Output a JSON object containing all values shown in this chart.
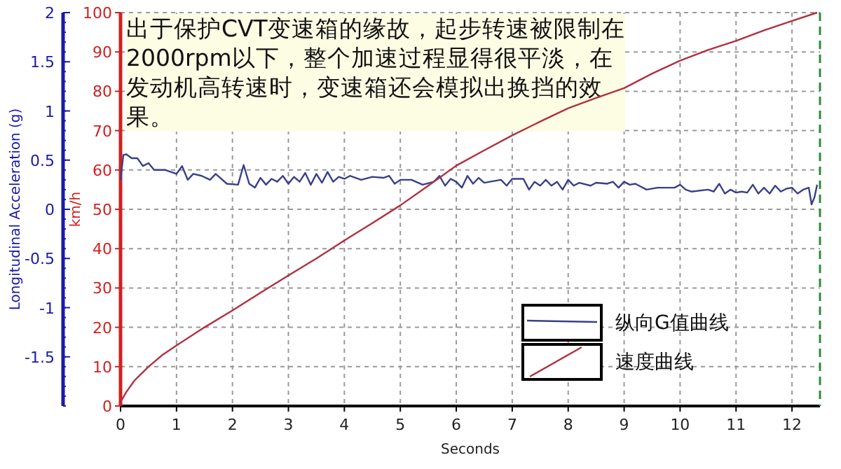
{
  "chart_data": {
    "type": "line",
    "xlabel": "Seconds",
    "ylabel": "Longitudinal Acceleration (g)",
    "y2label": "km/h",
    "annotations": [
      "出于保护CVT变速箱的缘故，起步转速被限制在2000rpm以下，整个加速过程显得很平淡，在发动机高转速时，变速箱还会模拟出换挡的效果。"
    ],
    "xlim": [
      0,
      12.5
    ],
    "xticks": [
      0,
      1,
      2,
      3,
      4,
      5,
      6,
      7,
      8,
      9,
      10,
      11,
      12
    ],
    "ylim": [
      -2,
      2
    ],
    "yticks": [
      -1.5,
      -1,
      -0.5,
      0,
      0.5,
      1,
      1.5,
      2
    ],
    "y2lim": [
      0,
      100
    ],
    "y2ticks": [
      0,
      10,
      20,
      30,
      40,
      50,
      60,
      70,
      80,
      90,
      100
    ],
    "grid": true,
    "legend": "bottom right",
    "ref_lines": [
      {
        "axis": "x",
        "value": 12.5,
        "color": "#2e8b3a",
        "line_style": "dashed"
      }
    ],
    "series": [
      {
        "name": "纵向G值曲线",
        "color": "#3a3f8a",
        "x": [
          0,
          0.05,
          0.1,
          0.2,
          0.3,
          0.4,
          0.5,
          0.6,
          0.8,
          1.0,
          1.1,
          1.2,
          1.3,
          1.45,
          1.6,
          1.7,
          1.9,
          2.1,
          2.2,
          2.3,
          2.4,
          2.5,
          2.6,
          2.7,
          2.8,
          2.9,
          3.0,
          3.1,
          3.2,
          3.3,
          3.4,
          3.5,
          3.6,
          3.7,
          3.8,
          3.9,
          4.0,
          4.1,
          4.3,
          4.5,
          4.7,
          4.8,
          4.9,
          5.0,
          5.2,
          5.4,
          5.6,
          5.7,
          5.8,
          5.9,
          6.0,
          6.1,
          6.2,
          6.3,
          6.4,
          6.5,
          6.6,
          6.8,
          6.9,
          7.0,
          7.2,
          7.3,
          7.4,
          7.5,
          7.6,
          7.7,
          7.8,
          7.9,
          8.0,
          8.1,
          8.2,
          8.4,
          8.5,
          8.7,
          8.8,
          8.9,
          9.0,
          9.1,
          9.2,
          9.4,
          9.6,
          9.7,
          9.9,
          10.0,
          10.1,
          10.2,
          10.5,
          10.6,
          10.7,
          10.8,
          10.9,
          11.0,
          11.1,
          11.2,
          11.3,
          11.4,
          11.5,
          11.6,
          11.7,
          11.8,
          11.9,
          12.0,
          12.1,
          12.2,
          12.3,
          12.35,
          12.4,
          12.45
        ],
        "values": [
          0.3,
          0.55,
          0.56,
          0.52,
          0.52,
          0.44,
          0.47,
          0.4,
          0.4,
          0.36,
          0.44,
          0.3,
          0.36,
          0.34,
          0.3,
          0.36,
          0.26,
          0.25,
          0.45,
          0.26,
          0.22,
          0.32,
          0.25,
          0.31,
          0.28,
          0.34,
          0.26,
          0.33,
          0.28,
          0.37,
          0.25,
          0.36,
          0.27,
          0.38,
          0.28,
          0.33,
          0.31,
          0.34,
          0.3,
          0.33,
          0.32,
          0.34,
          0.26,
          0.3,
          0.3,
          0.25,
          0.28,
          0.34,
          0.24,
          0.31,
          0.28,
          0.22,
          0.34,
          0.26,
          0.32,
          0.27,
          0.28,
          0.3,
          0.24,
          0.31,
          0.31,
          0.2,
          0.28,
          0.24,
          0.3,
          0.24,
          0.28,
          0.2,
          0.3,
          0.24,
          0.27,
          0.24,
          0.27,
          0.26,
          0.28,
          0.22,
          0.28,
          0.25,
          0.26,
          0.2,
          0.22,
          0.22,
          0.22,
          0.25,
          0.2,
          0.18,
          0.2,
          0.18,
          0.26,
          0.16,
          0.2,
          0.17,
          0.18,
          0.17,
          0.25,
          0.16,
          0.22,
          0.16,
          0.24,
          0.18,
          0.21,
          0.22,
          0.16,
          0.2,
          0.22,
          0.05,
          0.12,
          0.25
        ]
      },
      {
        "name": "速度曲线",
        "color": "#b03040",
        "axis": "y2",
        "x": [
          0,
          0.1,
          0.25,
          0.5,
          0.75,
          1,
          1.5,
          2,
          2.5,
          3,
          3.5,
          4,
          4.5,
          5,
          5.5,
          6,
          6.5,
          7,
          7.5,
          8,
          8.5,
          9,
          9.5,
          10,
          10.5,
          11,
          11.5,
          12,
          12.45
        ],
        "values": [
          1,
          3.5,
          6.5,
          10,
          13,
          15.4,
          20,
          24.3,
          28.8,
          33.2,
          37.5,
          42.1,
          46.5,
          51,
          56,
          61.1,
          65,
          68.8,
          72.3,
          75.7,
          78.3,
          80.8,
          84.5,
          87.8,
          90.5,
          92.8,
          95.5,
          97.9,
          100
        ]
      }
    ]
  }
}
